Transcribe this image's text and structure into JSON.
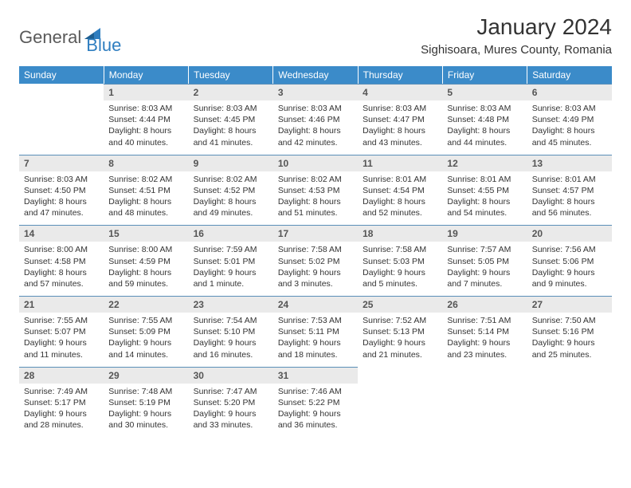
{
  "brand": {
    "general": "General",
    "blue": "Blue"
  },
  "title": "January 2024",
  "location": "Sighisoara, Mures County, Romania",
  "colors": {
    "header_bg": "#3b8bc9",
    "header_text": "#ffffff",
    "daynum_bg": "#eaeaea",
    "daynum_text": "#555555",
    "border_top": "#5a8fb8",
    "body_text": "#333333",
    "logo_gray": "#5a5a5a",
    "logo_blue": "#2f7ec0"
  },
  "day_names": [
    "Sunday",
    "Monday",
    "Tuesday",
    "Wednesday",
    "Thursday",
    "Friday",
    "Saturday"
  ],
  "weeks": [
    [
      null,
      {
        "n": "1",
        "sr": "8:03 AM",
        "ss": "4:44 PM",
        "dl": "8 hours and 40 minutes."
      },
      {
        "n": "2",
        "sr": "8:03 AM",
        "ss": "4:45 PM",
        "dl": "8 hours and 41 minutes."
      },
      {
        "n": "3",
        "sr": "8:03 AM",
        "ss": "4:46 PM",
        "dl": "8 hours and 42 minutes."
      },
      {
        "n": "4",
        "sr": "8:03 AM",
        "ss": "4:47 PM",
        "dl": "8 hours and 43 minutes."
      },
      {
        "n": "5",
        "sr": "8:03 AM",
        "ss": "4:48 PM",
        "dl": "8 hours and 44 minutes."
      },
      {
        "n": "6",
        "sr": "8:03 AM",
        "ss": "4:49 PM",
        "dl": "8 hours and 45 minutes."
      }
    ],
    [
      {
        "n": "7",
        "sr": "8:03 AM",
        "ss": "4:50 PM",
        "dl": "8 hours and 47 minutes."
      },
      {
        "n": "8",
        "sr": "8:02 AM",
        "ss": "4:51 PM",
        "dl": "8 hours and 48 minutes."
      },
      {
        "n": "9",
        "sr": "8:02 AM",
        "ss": "4:52 PM",
        "dl": "8 hours and 49 minutes."
      },
      {
        "n": "10",
        "sr": "8:02 AM",
        "ss": "4:53 PM",
        "dl": "8 hours and 51 minutes."
      },
      {
        "n": "11",
        "sr": "8:01 AM",
        "ss": "4:54 PM",
        "dl": "8 hours and 52 minutes."
      },
      {
        "n": "12",
        "sr": "8:01 AM",
        "ss": "4:55 PM",
        "dl": "8 hours and 54 minutes."
      },
      {
        "n": "13",
        "sr": "8:01 AM",
        "ss": "4:57 PM",
        "dl": "8 hours and 56 minutes."
      }
    ],
    [
      {
        "n": "14",
        "sr": "8:00 AM",
        "ss": "4:58 PM",
        "dl": "8 hours and 57 minutes."
      },
      {
        "n": "15",
        "sr": "8:00 AM",
        "ss": "4:59 PM",
        "dl": "8 hours and 59 minutes."
      },
      {
        "n": "16",
        "sr": "7:59 AM",
        "ss": "5:01 PM",
        "dl": "9 hours and 1 minute."
      },
      {
        "n": "17",
        "sr": "7:58 AM",
        "ss": "5:02 PM",
        "dl": "9 hours and 3 minutes."
      },
      {
        "n": "18",
        "sr": "7:58 AM",
        "ss": "5:03 PM",
        "dl": "9 hours and 5 minutes."
      },
      {
        "n": "19",
        "sr": "7:57 AM",
        "ss": "5:05 PM",
        "dl": "9 hours and 7 minutes."
      },
      {
        "n": "20",
        "sr": "7:56 AM",
        "ss": "5:06 PM",
        "dl": "9 hours and 9 minutes."
      }
    ],
    [
      {
        "n": "21",
        "sr": "7:55 AM",
        "ss": "5:07 PM",
        "dl": "9 hours and 11 minutes."
      },
      {
        "n": "22",
        "sr": "7:55 AM",
        "ss": "5:09 PM",
        "dl": "9 hours and 14 minutes."
      },
      {
        "n": "23",
        "sr": "7:54 AM",
        "ss": "5:10 PM",
        "dl": "9 hours and 16 minutes."
      },
      {
        "n": "24",
        "sr": "7:53 AM",
        "ss": "5:11 PM",
        "dl": "9 hours and 18 minutes."
      },
      {
        "n": "25",
        "sr": "7:52 AM",
        "ss": "5:13 PM",
        "dl": "9 hours and 21 minutes."
      },
      {
        "n": "26",
        "sr": "7:51 AM",
        "ss": "5:14 PM",
        "dl": "9 hours and 23 minutes."
      },
      {
        "n": "27",
        "sr": "7:50 AM",
        "ss": "5:16 PM",
        "dl": "9 hours and 25 minutes."
      }
    ],
    [
      {
        "n": "28",
        "sr": "7:49 AM",
        "ss": "5:17 PM",
        "dl": "9 hours and 28 minutes."
      },
      {
        "n": "29",
        "sr": "7:48 AM",
        "ss": "5:19 PM",
        "dl": "9 hours and 30 minutes."
      },
      {
        "n": "30",
        "sr": "7:47 AM",
        "ss": "5:20 PM",
        "dl": "9 hours and 33 minutes."
      },
      {
        "n": "31",
        "sr": "7:46 AM",
        "ss": "5:22 PM",
        "dl": "9 hours and 36 minutes."
      },
      null,
      null,
      null
    ]
  ],
  "labels": {
    "sunrise": "Sunrise:",
    "sunset": "Sunset:",
    "daylight": "Daylight:"
  }
}
